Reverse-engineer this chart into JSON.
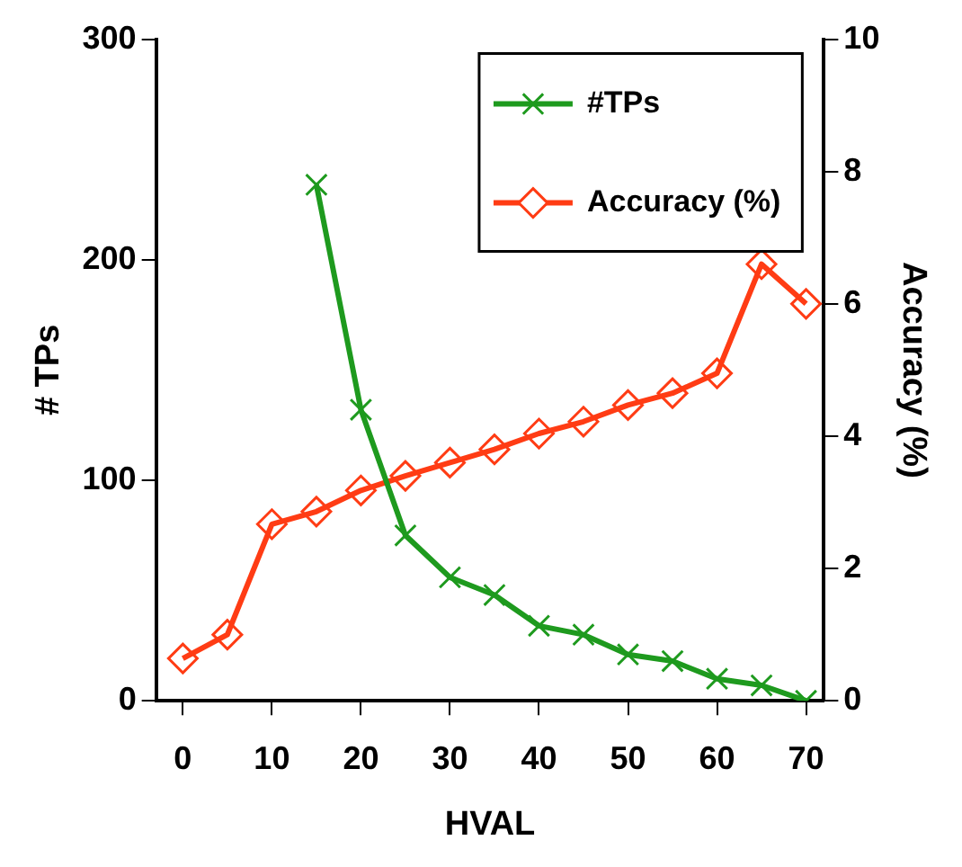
{
  "chart_data": {
    "type": "line",
    "xlabel": "HVAL",
    "ylabel": "# TPs",
    "y2label": "Accuracy (%)",
    "x": [
      0,
      5,
      10,
      15,
      20,
      25,
      30,
      35,
      40,
      45,
      50,
      55,
      60,
      65,
      70
    ],
    "xlim": [
      -3,
      72
    ],
    "xticks": [
      0,
      10,
      20,
      30,
      40,
      50,
      60,
      70
    ],
    "ylim": [
      0,
      300
    ],
    "yticks": [
      0,
      100,
      200,
      300
    ],
    "y2lim": [
      0,
      10
    ],
    "y2ticks": [
      0,
      2,
      4,
      6,
      8,
      10
    ],
    "grid": false,
    "legend": "top right",
    "series": [
      {
        "name": "#TPs",
        "color": "#1e9a1e",
        "marker": "cross",
        "values": [
          null,
          null,
          null,
          234,
          132,
          75,
          56,
          48,
          34,
          30,
          21,
          18,
          10,
          7,
          0
        ]
      },
      {
        "name": "Accuracy (%)",
        "color": "#ff3c14",
        "marker": "diamond",
        "axis": "y2",
        "values": [
          0.64,
          1.0,
          2.67,
          2.86,
          3.18,
          3.4,
          3.6,
          3.8,
          4.04,
          4.22,
          4.47,
          4.65,
          4.95,
          6.6,
          6.0
        ]
      }
    ]
  }
}
